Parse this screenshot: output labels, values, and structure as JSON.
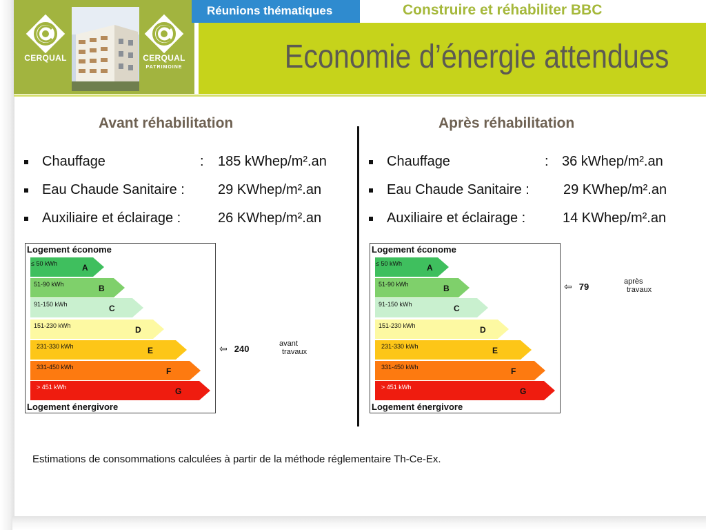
{
  "header": {
    "left_logo": {
      "name": "CERQUAL",
      "icon": "cerqual-logo"
    },
    "right_logo": {
      "name": "CERQUAL",
      "subtitle": "PATRIMOINE",
      "icon": "cerqual-patrimoine-logo"
    },
    "tab_label": "Réunions thématiques",
    "series_title": "Construire et réhabiliter BBC",
    "title": "Economie d’énergie attendues",
    "colors": {
      "logo_green": "#a2b43f",
      "tab_blue": "#2f8bcf",
      "band_green": "#c6d31b",
      "title_grey": "#5c5a52"
    }
  },
  "before": {
    "heading": "Avant réhabilitation",
    "items": [
      {
        "label": "Chauffage",
        "sep": ":",
        "value": "185 kWhep/m².an"
      },
      {
        "label": "Eau Chaude Sanitaire :",
        "sep": "",
        "value": "29 KWhep/m².an"
      },
      {
        "label": "Auxiliaire et éclairage  :",
        "sep": "",
        "value": "26 KWhep/m².an"
      }
    ],
    "rating_value": 240,
    "rating_class": "E",
    "rating_arrow": "⇦",
    "note_line1": "avant",
    "note_line2": "travaux"
  },
  "after": {
    "heading": "Après réhabilitation",
    "items": [
      {
        "label": "Chauffage",
        "sep": ":",
        "value": "36 kWhep/m².an"
      },
      {
        "label": "Eau Chaude Sanitaire :",
        "sep": "",
        "value": "29 KWhep/m².an"
      },
      {
        "label": "Auxiliaire et éclairage  :",
        "sep": "",
        "value": "14 KWhep/m².an"
      }
    ],
    "rating_value": 79,
    "rating_class": "B",
    "rating_arrow": "⇦",
    "note_line1": "après",
    "note_line2": "travaux"
  },
  "energy_label": {
    "top_title": "Logement économe",
    "bottom_title": "Logement énergivore",
    "classes": [
      {
        "letter": "A",
        "range": "≤ 50 kWh",
        "color": "#3fbf5e"
      },
      {
        "letter": "B",
        "range": "51-90 kWh",
        "color": "#7fd06b"
      },
      {
        "letter": "C",
        "range": "91-150 kWh",
        "color": "#c9f0cf"
      },
      {
        "letter": "D",
        "range": "151-230 kWh",
        "color": "#fdf9a2"
      },
      {
        "letter": "E",
        "range": "231-330 kWh",
        "color": "#fdc618"
      },
      {
        "letter": "F",
        "range": "331-450 kWh",
        "color": "#fd7a10"
      },
      {
        "letter": "G",
        "range": "> 451 kWh",
        "color": "#ef1c0f"
      }
    ]
  },
  "footnote": "Estimations de consommations calculées à partir de la méthode réglementaire Th-Ce-Ex."
}
